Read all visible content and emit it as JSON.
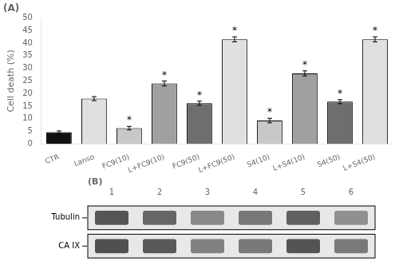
{
  "chart_data": [
    {
      "type": "bar",
      "title": "(A)",
      "ylabel": "Cell death (%)",
      "categories": [
        "CTR",
        "Lanso",
        "FC9(10)",
        "L+FC9(10)",
        "FC9(50)",
        "L+FC9(50)",
        "S4(10)",
        "L+S4(10)",
        "S4(50)",
        "L+S4(50)"
      ],
      "values": [
        4.7,
        18.0,
        6.3,
        24.0,
        16.2,
        41.5,
        9.3,
        28.0,
        16.8,
        41.5
      ],
      "errors": [
        0.5,
        0.8,
        0.7,
        1.0,
        0.8,
        1.0,
        0.9,
        1.0,
        0.8,
        1.0
      ],
      "colors": [
        "#111111",
        "#e0e0e0",
        "#c8c8c8",
        "#a0a0a0",
        "#6e6e6e",
        "#e0e0e0",
        "#c8c8c8",
        "#a0a0a0",
        "#6e6e6e",
        "#e0e0e0"
      ],
      "annotations": [
        {
          "category": "FC9(10)",
          "text": "*"
        },
        {
          "category": "L+FC9(10)",
          "text": "*"
        },
        {
          "category": "FC9(50)",
          "text": "*"
        },
        {
          "category": "L+FC9(50)",
          "text": "*"
        },
        {
          "category": "S4(10)",
          "text": "*"
        },
        {
          "category": "L+S4(10)",
          "text": "*"
        },
        {
          "category": "S4(50)",
          "text": "*"
        },
        {
          "category": "L+S4(50)",
          "text": "*"
        }
      ],
      "ylim": [
        0,
        50
      ],
      "yticks": [
        0,
        5,
        10,
        15,
        20,
        25,
        30,
        35,
        40,
        45,
        50
      ],
      "grid": false
    },
    {
      "type": "blot",
      "title": "(B)",
      "categories": [
        "1",
        "2",
        "3",
        "4",
        "5",
        "6"
      ],
      "series": [
        {
          "name": "Tubulin",
          "colors": [
            "#555555",
            "#666666",
            "#888888",
            "#777777",
            "#606060",
            "#909090"
          ]
        },
        {
          "name": "CA IX",
          "colors": [
            "#505050",
            "#595959",
            "#818181",
            "#787878",
            "#545454",
            "#797979"
          ]
        }
      ]
    }
  ]
}
